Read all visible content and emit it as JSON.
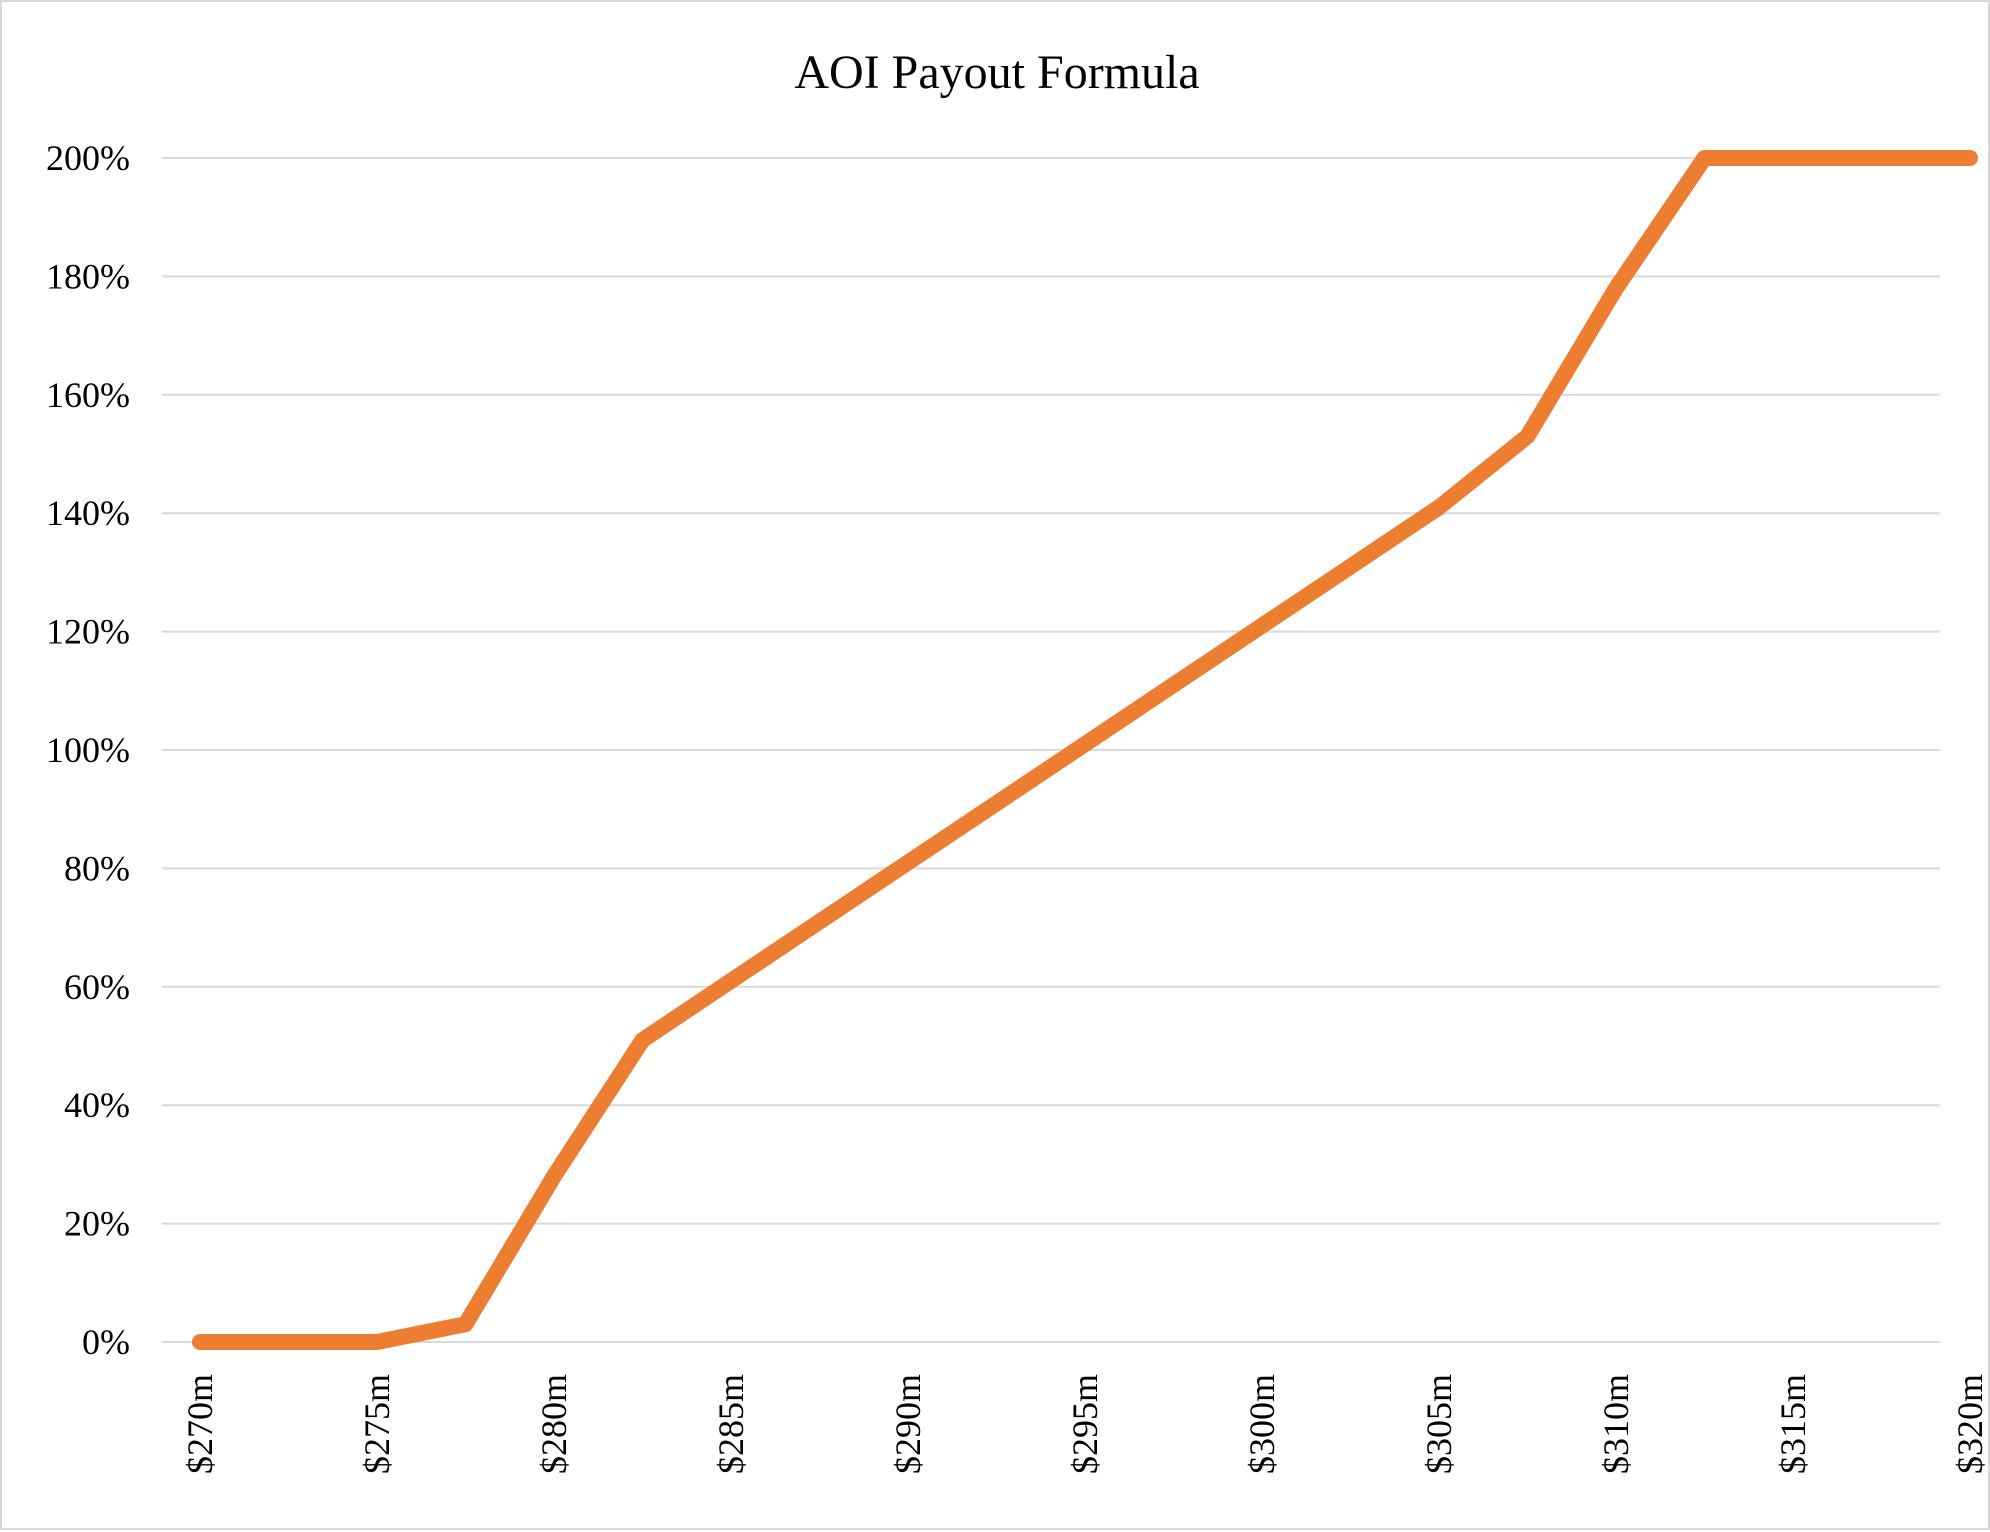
{
  "chart_data": {
    "type": "line",
    "title": "AOI Payout Formula",
    "xlabel": "",
    "ylabel": "",
    "x_tick_labels": [
      "$270m",
      "$275m",
      "$280m",
      "$285m",
      "$290m",
      "$295m",
      "$300m",
      "$305m",
      "$310m",
      "$315m",
      "$320m"
    ],
    "y_tick_labels": [
      "0%",
      "20%",
      "40%",
      "60%",
      "80%",
      "100%",
      "120%",
      "140%",
      "160%",
      "180%",
      "200%"
    ],
    "xlim": [
      270,
      320
    ],
    "ylim": [
      0,
      200
    ],
    "grid": true,
    "legend": "none",
    "series": [
      {
        "color": "#ed7d31",
        "x": [
          270,
          275,
          277.5,
          280,
          282.5,
          285,
          290,
          295,
          300,
          305,
          307.5,
          310,
          312.5,
          315,
          320
        ],
        "y": [
          0,
          0,
          3,
          28,
          51,
          61,
          81,
          101,
          121,
          141,
          153,
          178,
          200,
          200,
          200
        ]
      }
    ]
  }
}
